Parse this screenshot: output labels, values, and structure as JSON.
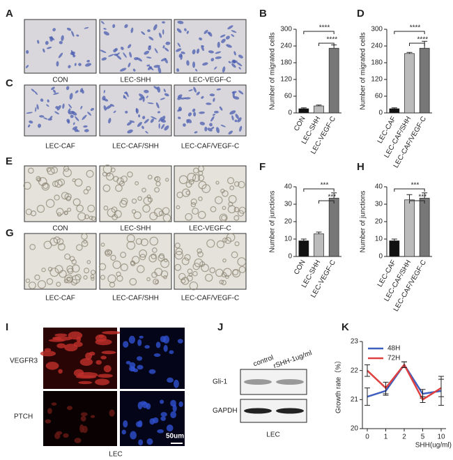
{
  "panel_labels": [
    "A",
    "B",
    "C",
    "D",
    "E",
    "F",
    "G",
    "H",
    "I",
    "J",
    "K"
  ],
  "migration_images": {
    "row1": [
      "CON",
      "LEC-SHH",
      "LEC-VEGF-C"
    ],
    "row2": [
      "LEC-CAF",
      "LEC-CAF/SHH",
      "LEC-CAF/VEGF-C"
    ]
  },
  "tube_images": {
    "row1": [
      "CON",
      "LEC-SHH",
      "LEC-VEGF-C"
    ],
    "row2": [
      "LEC-CAF",
      "LEC-CAF/SHH",
      "LEC-CAF/VEGF-C"
    ]
  },
  "immunofluorescence": {
    "rows": [
      "VEGFR3",
      "PTCH"
    ],
    "scale_bar": "50um",
    "caption": "LEC"
  },
  "western_blot": {
    "columns": [
      "control",
      "rSHH-1ug/ml"
    ],
    "rows": [
      "Gli-1",
      "GAPDH"
    ],
    "caption": "LEC"
  },
  "chart_data": [
    {
      "type": "bar",
      "y_label": "Number of migrated cells",
      "categories": [
        "CON",
        "LEC-SHH",
        "LEC-VEGF-C"
      ],
      "values": [
        15,
        25,
        232
      ],
      "errors": [
        3,
        3,
        12
      ],
      "colors": [
        "#111111",
        "#bbbbbb",
        "#777777"
      ],
      "ylim": [
        0,
        300
      ],
      "yticks": [
        0,
        60,
        120,
        180,
        240,
        300
      ],
      "annotations": [
        "****",
        "****"
      ]
    },
    {
      "type": "bar",
      "y_label": "Number of migrated cells",
      "categories": [
        "LEC-CAF",
        "LEC-CAF/SHH",
        "LEC-CAF/VEGF-C"
      ],
      "values": [
        15,
        213,
        232
      ],
      "errors": [
        3,
        4,
        25
      ],
      "colors": [
        "#111111",
        "#bbbbbb",
        "#777777"
      ],
      "ylim": [
        0,
        300
      ],
      "yticks": [
        0,
        60,
        120,
        180,
        240,
        300
      ],
      "annotations": [
        "****",
        "****"
      ]
    },
    {
      "type": "bar",
      "y_label": "Number of junctions",
      "categories": [
        "CON",
        "LEC-SHH",
        "LEC-VEGF-C"
      ],
      "values": [
        9,
        13,
        33.5
      ],
      "errors": [
        1,
        1,
        3
      ],
      "colors": [
        "#111111",
        "#bbbbbb",
        "#777777"
      ],
      "ylim": [
        0,
        40
      ],
      "yticks": [
        0,
        10,
        20,
        30,
        40
      ],
      "annotations": [
        "***",
        "***"
      ]
    },
    {
      "type": "bar",
      "y_label": "Number of junctions",
      "categories": [
        "LEC-CAF",
        "LEC-CAF/SHH",
        "LEC-CAF/VEGF-C"
      ],
      "values": [
        9,
        32.5,
        33.5
      ],
      "errors": [
        1,
        3,
        3
      ],
      "colors": [
        "#111111",
        "#bbbbbb",
        "#777777"
      ],
      "ylim": [
        0,
        40
      ],
      "yticks": [
        0,
        10,
        20,
        30,
        40
      ],
      "annotations": [
        "***",
        "***"
      ]
    },
    {
      "type": "line",
      "y_label": "Growth rate（%）",
      "x_label": "SHH(ug/ml)",
      "categories": [
        "0",
        "1",
        "2",
        "5",
        "10"
      ],
      "series": [
        {
          "name": "48H",
          "color": "#3f5fbf",
          "values": [
            21.1,
            21.3,
            22.2,
            21.2,
            21.3
          ],
          "errors": [
            0.3,
            0.15,
            0.1,
            0.15,
            0.5
          ]
        },
        {
          "name": "72H",
          "color": "#e04040",
          "values": [
            22.0,
            21.4,
            22.2,
            21.0,
            21.4
          ],
          "errors": [
            0.2,
            0.2,
            0.1,
            0.1,
            0.3
          ]
        }
      ],
      "ylim": [
        20,
        23
      ],
      "yticks": [
        20,
        21,
        22,
        23
      ],
      "legend": "upper-left"
    }
  ]
}
